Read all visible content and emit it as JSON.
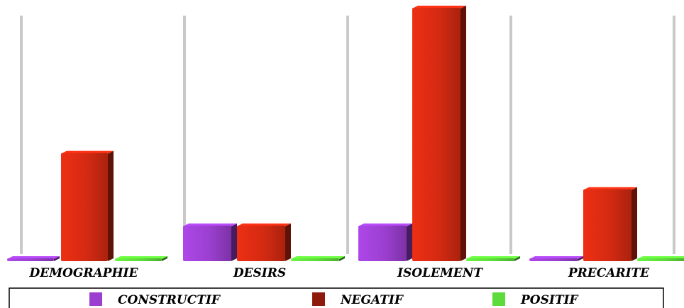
{
  "chart_data": {
    "type": "bar",
    "categories": [
      "DEMOGRAPHIE",
      "DESIRS",
      "ISOLEMENT",
      "PRECARITE"
    ],
    "series": [
      {
        "name": "CONSTRUCTIF",
        "values": [
          0,
          1,
          1,
          0
        ],
        "color": "#9b3fd0"
      },
      {
        "name": "NEGATIF",
        "values": [
          3,
          1,
          7,
          2
        ],
        "color": "#d42a12"
      },
      {
        "name": "POSITIF",
        "values": [
          0,
          0,
          0,
          0
        ],
        "color": "#5ddb3a"
      }
    ],
    "ylim": [
      0,
      7
    ],
    "grid": false,
    "legend_position": "bottom"
  }
}
